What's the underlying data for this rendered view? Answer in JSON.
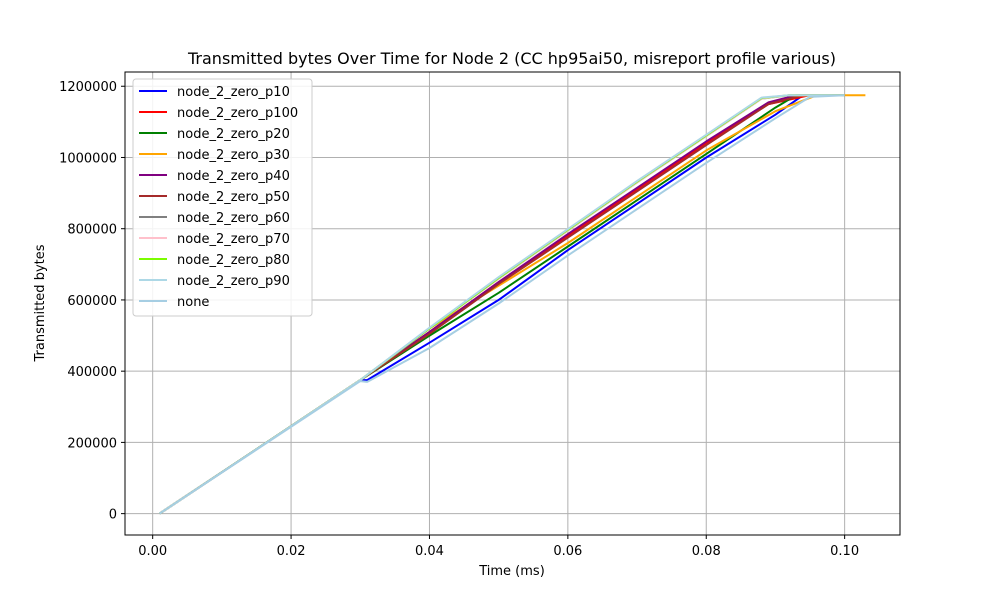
{
  "chart_data": {
    "type": "line",
    "title": "Transmitted bytes Over Time for Node 2 (CC hp95ai50, misreport profile various)",
    "xlabel": "Time (ms)",
    "ylabel": "Transmitted bytes",
    "xlim": [
      -0.004,
      0.108
    ],
    "ylim": [
      -60000,
      1240000
    ],
    "xticks": [
      0.0,
      0.02,
      0.04,
      0.06,
      0.08,
      0.1
    ],
    "xtick_labels": [
      "0.00",
      "0.02",
      "0.04",
      "0.06",
      "0.08",
      "0.10"
    ],
    "yticks": [
      0,
      200000,
      400000,
      600000,
      800000,
      1000000,
      1200000
    ],
    "ytick_labels": [
      "0",
      "200000",
      "400000",
      "600000",
      "800000",
      "1000000",
      "1200000"
    ],
    "grid": true,
    "legend_position": "upper-left",
    "series": [
      {
        "name": "node_2_zero_p10",
        "color": "#0000ff",
        "x": [
          0.001,
          0.03,
          0.031,
          0.04,
          0.05,
          0.06,
          0.07,
          0.08,
          0.09,
          0.094,
          0.1
        ],
        "y": [
          0,
          375000,
          375000,
          480000,
          600000,
          740000,
          870000,
          1000000,
          1120000,
          1175000,
          1175000
        ]
      },
      {
        "name": "node_2_zero_p100",
        "color": "#ff0000",
        "x": [
          0.001,
          0.03,
          0.04,
          0.05,
          0.06,
          0.07,
          0.08,
          0.089,
          0.095,
          0.1
        ],
        "y": [
          0,
          375000,
          510000,
          650000,
          780000,
          910000,
          1040000,
          1150000,
          1175000,
          1175000
        ]
      },
      {
        "name": "node_2_zero_p20",
        "color": "#008000",
        "x": [
          0.001,
          0.03,
          0.04,
          0.05,
          0.06,
          0.07,
          0.08,
          0.09,
          0.093,
          0.1
        ],
        "y": [
          0,
          375000,
          500000,
          620000,
          750000,
          880000,
          1010000,
          1140000,
          1175000,
          1175000
        ]
      },
      {
        "name": "node_2_zero_p30",
        "color": "#ffa500",
        "x": [
          0.001,
          0.03,
          0.04,
          0.05,
          0.06,
          0.07,
          0.08,
          0.09,
          0.096,
          0.103
        ],
        "y": [
          0,
          375000,
          520000,
          640000,
          760000,
          890000,
          1020000,
          1130000,
          1175000,
          1175000
        ]
      },
      {
        "name": "node_2_zero_p40",
        "color": "#800080",
        "x": [
          0.001,
          0.03,
          0.04,
          0.05,
          0.06,
          0.07,
          0.08,
          0.089,
          0.093,
          0.1
        ],
        "y": [
          0,
          375000,
          510000,
          650000,
          785000,
          915000,
          1045000,
          1155000,
          1175000,
          1175000
        ]
      },
      {
        "name": "node_2_zero_p50",
        "color": "#a52a2a",
        "x": [
          0.001,
          0.03,
          0.04,
          0.05,
          0.06,
          0.07,
          0.08,
          0.089,
          0.094,
          0.1
        ],
        "y": [
          0,
          375000,
          505000,
          645000,
          775000,
          905000,
          1035000,
          1150000,
          1175000,
          1175000
        ]
      },
      {
        "name": "node_2_zero_p60",
        "color": "#808080",
        "x": [
          0.001,
          0.03,
          0.04,
          0.05,
          0.06,
          0.07,
          0.08,
          0.088,
          0.092,
          0.1
        ],
        "y": [
          0,
          375000,
          520000,
          660000,
          795000,
          930000,
          1060000,
          1165000,
          1175000,
          1175000
        ]
      },
      {
        "name": "node_2_zero_p70",
        "color": "#ffc0cb",
        "x": [
          0.001,
          0.03,
          0.04,
          0.05,
          0.06,
          0.07,
          0.08,
          0.088,
          0.092,
          0.1
        ],
        "y": [
          0,
          375000,
          520000,
          660000,
          795000,
          930000,
          1060000,
          1165000,
          1175000,
          1175000
        ]
      },
      {
        "name": "node_2_zero_p80",
        "color": "#7cfc00",
        "x": [
          0.001,
          0.03,
          0.04,
          0.05,
          0.06,
          0.07,
          0.08,
          0.088,
          0.092,
          0.1
        ],
        "y": [
          0,
          375000,
          520000,
          662000,
          797000,
          932000,
          1062000,
          1167000,
          1175000,
          1175000
        ]
      },
      {
        "name": "node_2_zero_p90",
        "color": "#add8e6",
        "x": [
          0.001,
          0.03,
          0.04,
          0.05,
          0.06,
          0.07,
          0.08,
          0.088,
          0.092,
          0.1
        ],
        "y": [
          0,
          375000,
          522000,
          664000,
          799000,
          934000,
          1064000,
          1168000,
          1175000,
          1175000
        ]
      },
      {
        "name": "none",
        "color": "#a6cee3",
        "x": [
          0.001,
          0.03,
          0.031,
          0.04,
          0.05,
          0.06,
          0.07,
          0.08,
          0.09,
          0.095,
          0.1
        ],
        "y": [
          0,
          372000,
          370000,
          465000,
          590000,
          725000,
          855000,
          985000,
          1110000,
          1170000,
          1175000
        ]
      }
    ]
  }
}
